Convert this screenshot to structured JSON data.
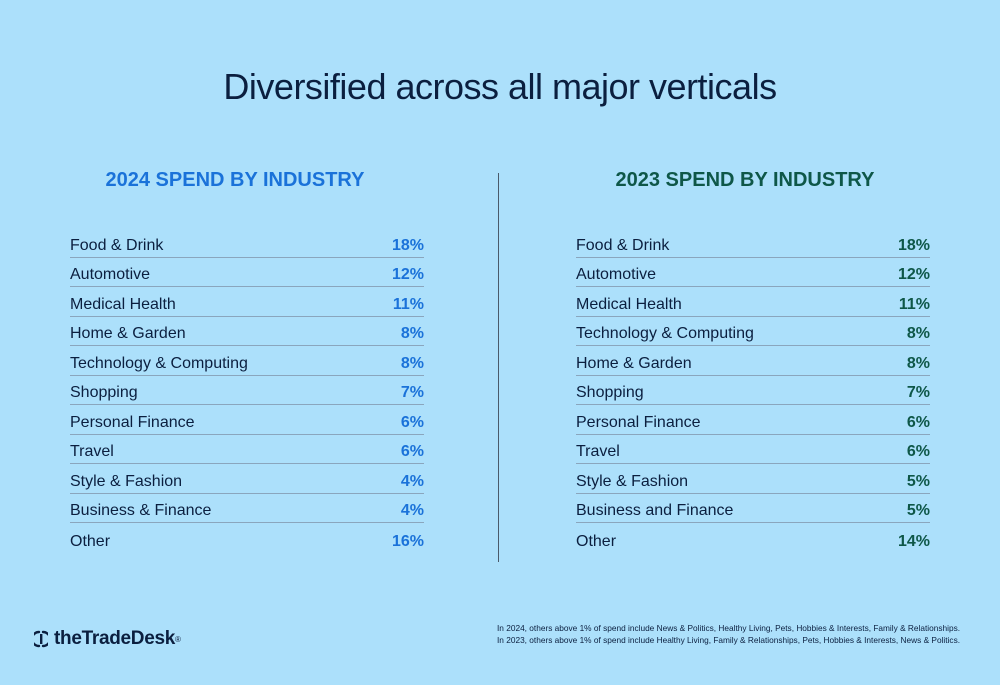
{
  "title": "Diversified across all major verticals",
  "panels": {
    "left": {
      "title": "2024 SPEND BY INDUSTRY",
      "rows": [
        {
          "label": "Food & Drink",
          "value": "18%"
        },
        {
          "label": "Automotive",
          "value": "12%"
        },
        {
          "label": "Medical Health",
          "value": "11%"
        },
        {
          "label": "Home & Garden",
          "value": "8%"
        },
        {
          "label": "Technology & Computing",
          "value": "8%"
        },
        {
          "label": "Shopping",
          "value": "7%"
        },
        {
          "label": "Personal Finance",
          "value": "6%"
        },
        {
          "label": "Travel",
          "value": "6%"
        },
        {
          "label": "Style & Fashion",
          "value": "4%"
        },
        {
          "label": "Business & Finance",
          "value": "4%"
        },
        {
          "label": "Other",
          "value": "16%"
        }
      ]
    },
    "right": {
      "title": "2023 SPEND BY INDUSTRY",
      "rows": [
        {
          "label": "Food & Drink",
          "value": "18%"
        },
        {
          "label": "Automotive",
          "value": "12%"
        },
        {
          "label": "Medical Health",
          "value": "11%"
        },
        {
          "label": "Technology & Computing",
          "value": "8%"
        },
        {
          "label": "Home & Garden",
          "value": "8%"
        },
        {
          "label": "Shopping",
          "value": "7%"
        },
        {
          "label": "Personal Finance",
          "value": "6%"
        },
        {
          "label": "Travel",
          "value": "6%"
        },
        {
          "label": "Style & Fashion",
          "value": "5%"
        },
        {
          "label": "Business and Finance",
          "value": "5%"
        },
        {
          "label": "Other",
          "value": "14%"
        }
      ]
    }
  },
  "colors": {
    "background": "#ace0fb",
    "accent_2024": "#1a72d9",
    "accent_2023": "#0e5748",
    "text": "#0b1f3f"
  },
  "logo": {
    "text": "theTradeDesk",
    "mark": "®"
  },
  "footnotes": [
    "In 2024, others above 1% of spend include News & Politics, Healthy Living, Pets, Hobbies & Interests, Family & Relationships.",
    "In 2023, others above 1% of spend include Healthy Living, Family & Relationships, Pets, Hobbies & Interests, News & Politics."
  ]
}
